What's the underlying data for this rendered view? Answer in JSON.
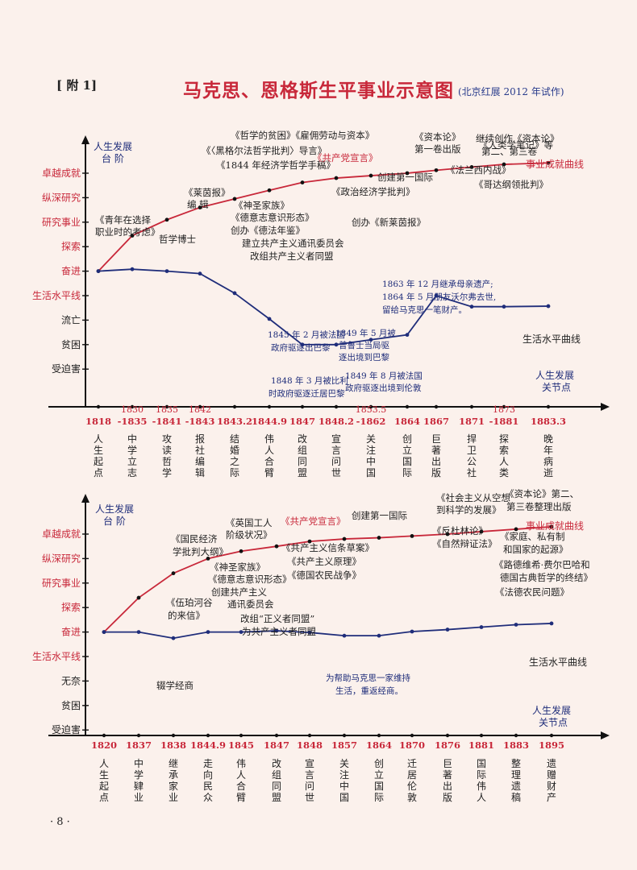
{
  "header": {
    "tag": "[ 附 1]",
    "title": "马克思、恩格斯生平事业示意图",
    "subtitle": "(北京红展 2012 年试作)"
  },
  "page_number": "· 8 ·",
  "colors": {
    "red": "#c8283a",
    "navy": "#1f2d7a",
    "text": "#222222",
    "background": "#fbf1ec"
  },
  "chart_data": [
    {
      "type": "line",
      "ylabel": "人生发展 台 阶",
      "xlabel": "人生发展 关节点",
      "y_levels": [
        "卓越成就",
        "纵深研究",
        "研究事业",
        "探索",
        "奋进",
        "生活水平线",
        "流亡",
        "贫困",
        "受迫害"
      ],
      "x": [
        "1818",
        "-1835",
        "-1841",
        "-1843",
        "1843.2",
        "1844.9",
        "1847",
        "1848.2",
        "-1862",
        "1864",
        "1867",
        "1871",
        "-1881",
        "1883.3"
      ],
      "x_upper": [
        "",
        "1830",
        "1835",
        "1842",
        "",
        "",
        "",
        "",
        "1853.5",
        "",
        "",
        "",
        "1873",
        ""
      ],
      "x_events": [
        "人生起点",
        "中学立志",
        "攻读哲学",
        "报社编辑",
        "结婚之际",
        "伟人合臂",
        "改组同盟",
        "宣言问世",
        "关注中国",
        "创立国际",
        "巨著出版",
        "捍卫公社",
        "探索人类",
        "晚年病逝"
      ],
      "series": [
        {
          "name": "事业成就曲线",
          "values": [
            5.0,
            6.45,
            7.1,
            7.6,
            7.95,
            8.3,
            8.62,
            8.8,
            8.9,
            9.0,
            9.12,
            9.25,
            9.36,
            9.42
          ]
        },
        {
          "name": "生活水平曲线",
          "values": [
            5.0,
            5.08,
            5.0,
            4.9,
            4.1,
            3.05,
            2.0,
            2.0,
            2.2,
            2.4,
            4.0,
            3.55,
            3.55,
            3.57
          ]
        }
      ],
      "annotations": [
        "《青年在选择",
        "职业时的考虑》",
        "哲学博士",
        "《莱茵报》",
        "编  辑",
        "《哲学的贫困》《雇佣劳动与资本》",
        "《〈黑格尔法哲学批判〉导言》",
        "《1844 年经济学哲学手稿》",
        "《神圣家族》",
        "《德意志意识形态》",
        "创办《德法年鉴》",
        "建立共产主义通讯委员会",
        "改组共产主义者同盟",
        "《共产党宣言》",
        "创办《新莱茵报》",
        "《政治经济学批判》",
        "创建第一国际",
        "《资本论》",
        "第一卷出版",
        "继续创作《资本论》",
        "第二、第三卷",
        "《人类学笔记》等",
        "《法兰西内战》",
        "《哥达纲领批判》",
        "1863 年 12 月继承母亲遗产;",
        "1864 年 5 月朋友沃尔弗去世,",
        "留给马克思一笔财产。",
        "1845 年 2 月被法国",
        "政府驱逐出巴黎",
        "1849 年 5 月被",
        "普鲁士当局驱",
        "逐出境到巴黎",
        "1848 年 3 月被比利",
        "时政府驱逐迁居巴黎",
        "1849 年 8 月被法国",
        "政府驱逐出境到伦敦"
      ]
    },
    {
      "type": "line",
      "ylabel": "人生发展 台 阶",
      "xlabel": "人生发展 关节点",
      "y_levels": [
        "卓越成就",
        "纵深研究",
        "研究事业",
        "探索",
        "奋进",
        "生活水平线",
        "无奈",
        "贫困",
        "受迫害"
      ],
      "x": [
        "1820",
        "1837",
        "1838",
        "1844.9",
        "1845",
        "1847",
        "1848",
        "1857",
        "1864",
        "1870",
        "1876",
        "1881",
        "1883",
        "1895"
      ],
      "x_events": [
        "人生起点",
        "中学肄业",
        "继承家业",
        "走向民众",
        "伟人合臂",
        "改组同盟",
        "宣言问世",
        "关注中国",
        "创立国际",
        "迁居伦敦",
        "巨著出版",
        "国际伟人",
        "整理遗稿",
        "遗赠财产"
      ],
      "series": [
        {
          "name": "事业成就曲线",
          "values": [
            5.0,
            6.4,
            7.4,
            8.0,
            8.3,
            8.5,
            8.7,
            8.8,
            8.85,
            8.92,
            9.0,
            9.1,
            9.2,
            9.3
          ]
        },
        {
          "name": "生活水平曲线",
          "values": [
            5.0,
            5.0,
            4.75,
            5.0,
            5.0,
            5.05,
            4.98,
            4.85,
            4.85,
            5.02,
            5.1,
            5.2,
            5.3,
            5.35
          ]
        }
      ],
      "annotations": [
        "《伍珀河谷",
        "的来信》",
        "《国民经济",
        "学批判大纲》",
        "《英国工人",
        "阶级状况》",
        "《神圣家族》",
        "《德意志意识形态》",
        "创建共产主义",
        "通讯委员会",
        "改组“正义者同盟”",
        "为共产主义者同盟",
        "《共产党宣言》",
        "《共产主义信条草案》",
        "《共产主义原理》",
        "《德国农民战争》",
        "创建第一国际",
        "《社会主义从空想",
        "到科学的发展》",
        "《资本论》第二、",
        "第三卷整理出版",
        "《反杜林论》",
        "《自然辩证法》",
        "《家庭、私有制",
        "和国家的起源》",
        "《路德维希·费尔巴哈和",
        "德国古典哲学的终结》",
        "《法德农民问题》",
        "辍学经商",
        "为帮助马克思一家维持",
        "生活，重返经商。"
      ]
    }
  ]
}
